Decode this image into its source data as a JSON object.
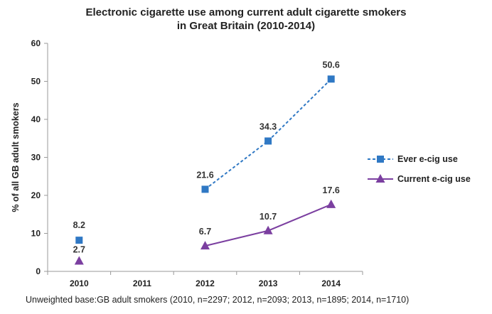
{
  "chart_data": {
    "type": "line",
    "title_line1": "Electronic cigarette use among current adult cigarette smokers",
    "title_line2": "in Great Britain (2010-2014)",
    "xlabel": "",
    "ylabel": "% of all GB adult smokers",
    "categories": [
      "2010",
      "2011",
      "2012",
      "2013",
      "2014"
    ],
    "ylim": [
      0,
      60
    ],
    "yticks": [
      0,
      10,
      20,
      30,
      40,
      50,
      60
    ],
    "grid": false,
    "legend_position": "right",
    "series": [
      {
        "name": "Ever e-cig use",
        "color": "#2f78c4",
        "marker": "square",
        "line_style": "dashed",
        "values": [
          8.2,
          null,
          21.6,
          34.3,
          50.6
        ],
        "labels": [
          "8.2",
          "",
          "21.6",
          "34.3",
          "50.6"
        ]
      },
      {
        "name": "Current e-cig use",
        "color": "#7b3fa0",
        "marker": "triangle",
        "line_style": "solid",
        "values": [
          2.7,
          null,
          6.7,
          10.7,
          17.6
        ],
        "labels": [
          "2.7",
          "",
          "6.7",
          "10.7",
          "17.6"
        ]
      }
    ]
  },
  "caption": "Unweighted base:GB adult smokers (2010, n=2297; 2012, n=2093; 2013, n=1895; 2014, n=1710)"
}
